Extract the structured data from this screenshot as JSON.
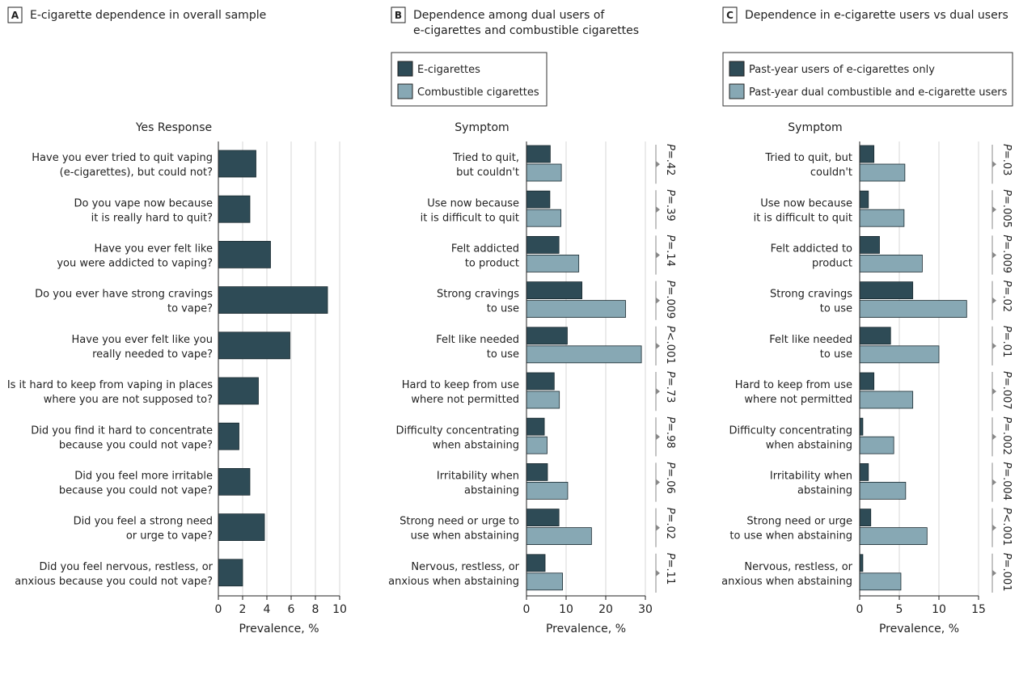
{
  "colors": {
    "dark": "#2e4b56",
    "light": "#87a8b4",
    "grid": "#d7d7d7",
    "axis": "#222222",
    "pline": "#888888"
  },
  "chart_data": [
    {
      "letter": "A",
      "type": "bar",
      "orientation": "horizontal",
      "title": "E-cigarette dependence in overall sample",
      "column_header": "Yes Response",
      "xlabel": "Prevalence, %",
      "xlim": [
        0,
        10
      ],
      "xticks": [
        0,
        2,
        4,
        6,
        8,
        10
      ],
      "grid": true,
      "categories": [
        [
          "Have you ever tried to quit vaping",
          "(e-cigarettes), but could not?"
        ],
        [
          "Do you vape now because",
          "it is really hard to quit?"
        ],
        [
          "Have you ever felt like",
          "you were addicted to vaping?"
        ],
        [
          "Do you ever have strong cravings",
          "to vape?"
        ],
        [
          "Have you ever felt like you",
          "really needed to vape?"
        ],
        [
          "Is it hard to keep from vaping in places",
          "where you are not supposed to?"
        ],
        [
          "Did you find it hard to concentrate",
          "because you could not vape?"
        ],
        [
          "Did you feel more irritable",
          "because you could not vape?"
        ],
        [
          "Did you feel a strong need",
          "or urge to vape?"
        ],
        [
          "Did you feel nervous, restless, or",
          "anxious because you could not vape?"
        ]
      ],
      "series": [
        {
          "values": [
            3.1,
            2.6,
            4.3,
            9.0,
            5.9,
            3.3,
            1.7,
            2.6,
            3.8,
            2.0
          ]
        }
      ]
    },
    {
      "letter": "B",
      "type": "bar",
      "orientation": "horizontal",
      "title": [
        "Dependence among dual users of",
        "e-cigarettes and combustible cigarettes"
      ],
      "column_header": "Symptom",
      "xlabel": "Prevalence, %",
      "xlim": [
        0,
        30
      ],
      "xticks": [
        0,
        10,
        20,
        30
      ],
      "grid": true,
      "legend": {
        "placement": "top"
      },
      "categories": [
        [
          "Tried to quit,",
          "but couldn't"
        ],
        [
          "Use now because",
          "it is difficult to quit"
        ],
        [
          "Felt addicted",
          "to product"
        ],
        [
          "Strong cravings",
          "to use"
        ],
        [
          "Felt like needed",
          "to use"
        ],
        [
          "Hard to keep from use",
          "where not permitted"
        ],
        [
          "Difficulty concentrating",
          "when abstaining"
        ],
        [
          "Irritability when",
          "abstaining"
        ],
        [
          "Strong need or urge to",
          "use when abstaining"
        ],
        [
          "Nervous, restless, or",
          "anxious when abstaining"
        ]
      ],
      "series": [
        {
          "name": "E-cigarettes",
          "values": [
            6.0,
            5.9,
            8.2,
            14.0,
            10.3,
            7.0,
            4.5,
            5.3,
            8.2,
            4.7
          ]
        },
        {
          "name": "Combustible cigarettes",
          "values": [
            8.8,
            8.7,
            13.2,
            25.0,
            29.0,
            8.3,
            5.2,
            10.4,
            16.4,
            9.1
          ]
        }
      ],
      "p_values": [
        "=.42",
        "=.39",
        "=.14",
        "=.009",
        "<.001",
        "=.73",
        "=.98",
        "=.06",
        "=.02",
        "=.11"
      ]
    },
    {
      "letter": "C",
      "type": "bar",
      "orientation": "horizontal",
      "title": "Dependence in e-cigarette users vs dual users",
      "column_header": "Symptom",
      "xlabel": "Prevalence, %",
      "xlim": [
        0,
        15
      ],
      "xticks": [
        0,
        5,
        10,
        15
      ],
      "grid": true,
      "legend": {
        "placement": "top"
      },
      "categories": [
        [
          "Tried to quit, but",
          "couldn't"
        ],
        [
          "Use now because",
          "it is difficult to quit"
        ],
        [
          "Felt addicted to",
          "product"
        ],
        [
          "Strong cravings",
          "to use"
        ],
        [
          "Felt like needed",
          "to use"
        ],
        [
          "Hard to keep from use",
          "where not permitted"
        ],
        [
          "Difficulty concentrating",
          "when abstaining"
        ],
        [
          "Irritability when",
          "abstaining"
        ],
        [
          "Strong need or urge",
          "to use when abstaining"
        ],
        [
          "Nervous, restless, or",
          "anxious when abstaining"
        ]
      ],
      "series": [
        {
          "name": "Past-year users of e-cigarettes only",
          "values": [
            1.8,
            1.1,
            2.5,
            6.7,
            3.9,
            1.8,
            0.4,
            1.1,
            1.4,
            0.4
          ]
        },
        {
          "name": "Past-year dual combustible and e-cigarette users",
          "values": [
            5.7,
            5.6,
            7.9,
            13.5,
            10.0,
            6.7,
            4.3,
            5.8,
            8.5,
            5.2
          ]
        }
      ],
      "p_values": [
        "=.03",
        "=.005",
        "=.009",
        "=.02",
        "=.01",
        "=.007",
        "=.002",
        "=.004",
        "<.001",
        "=.001"
      ]
    }
  ]
}
